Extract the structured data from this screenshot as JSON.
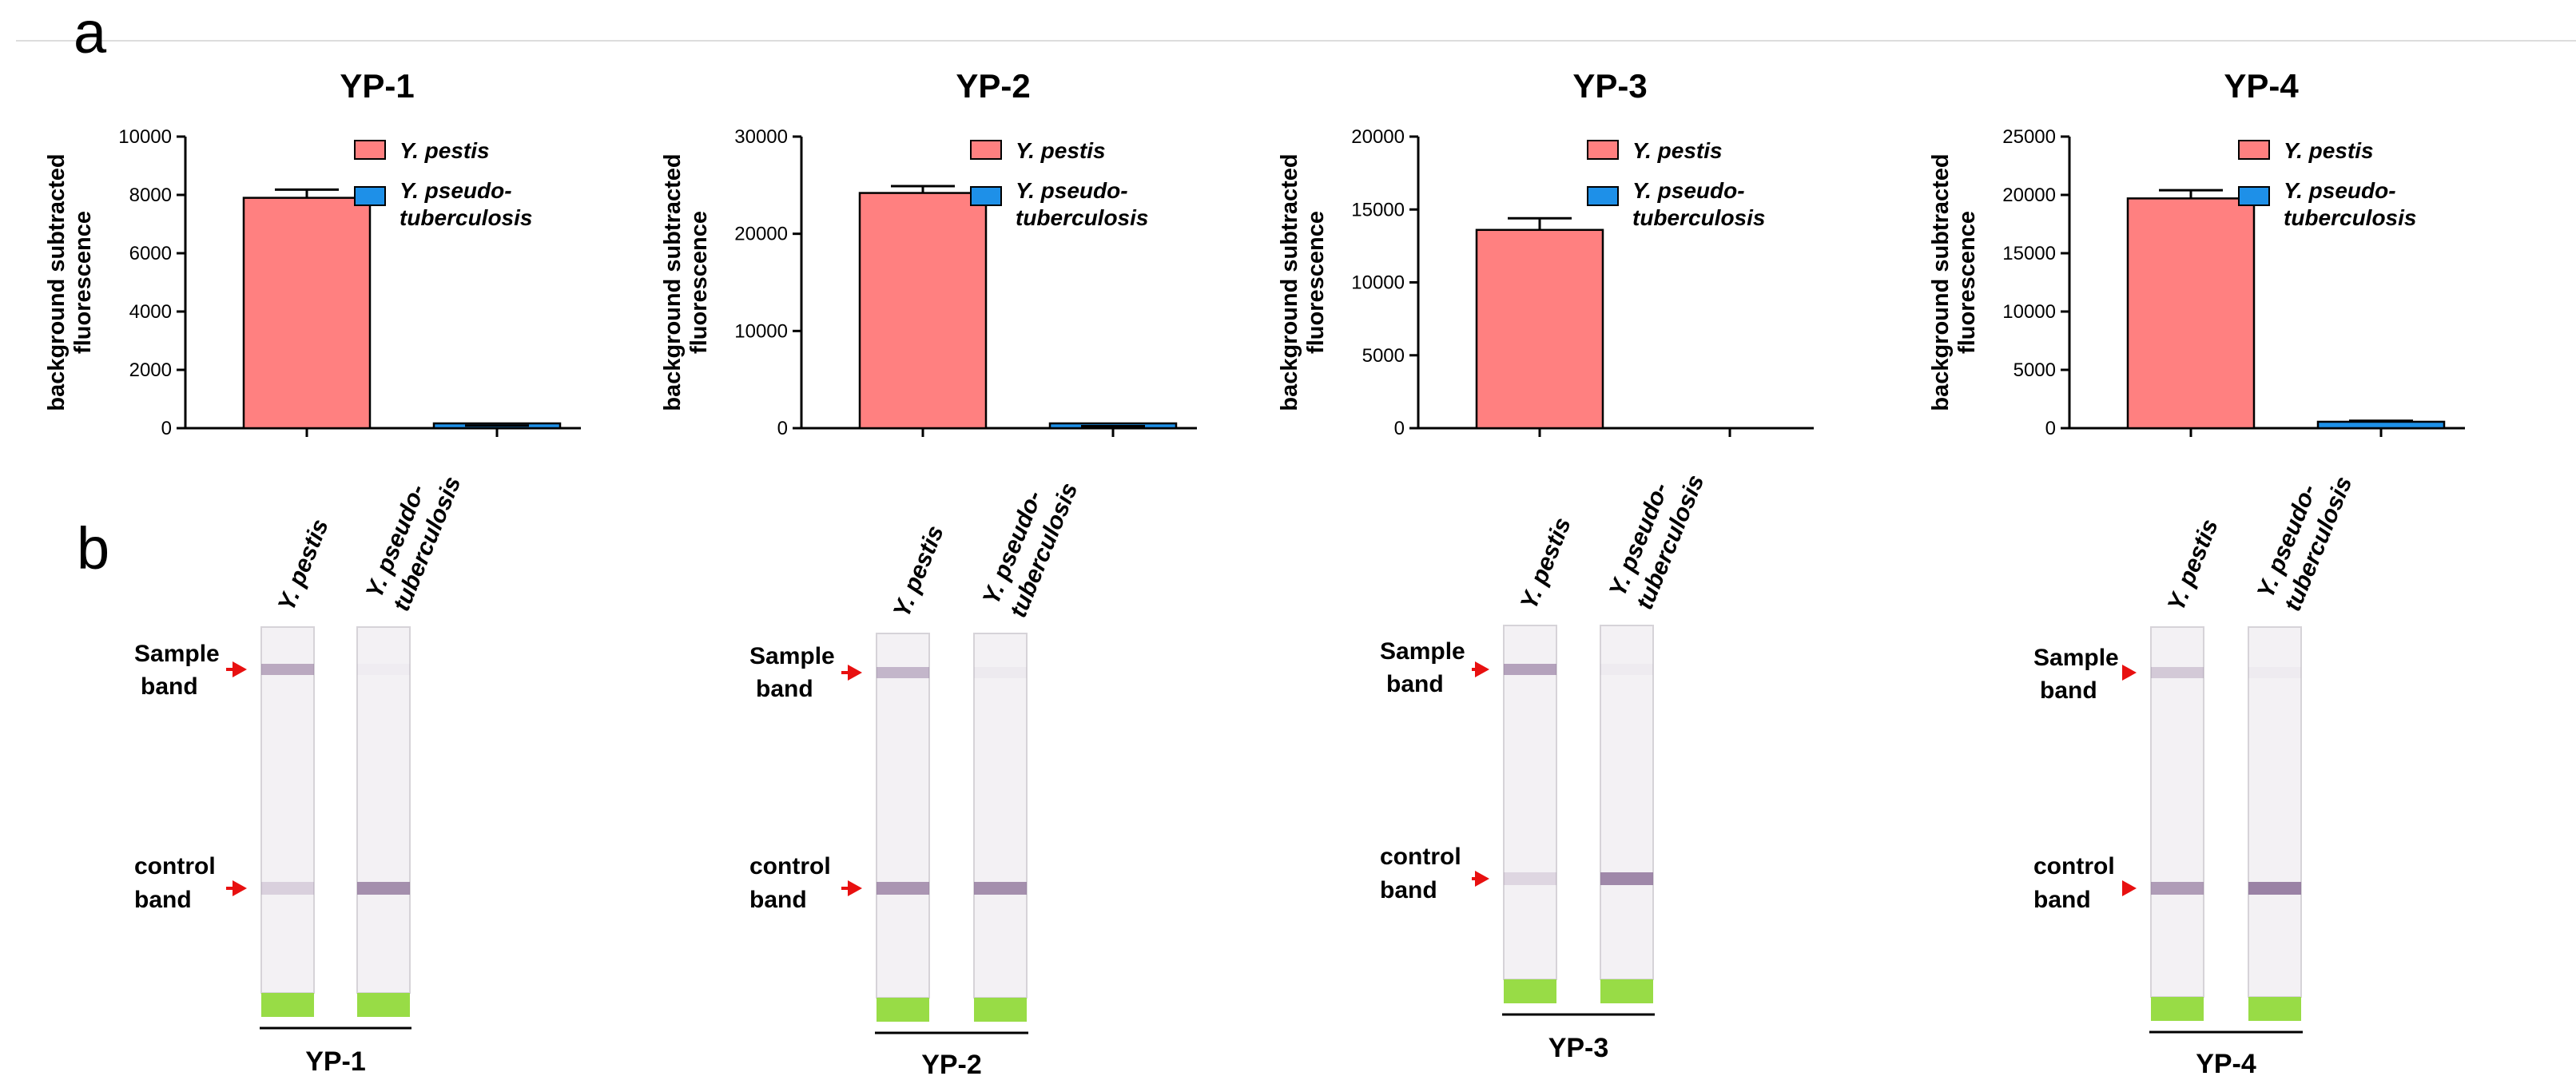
{
  "panels": {
    "a": "a",
    "b": "b"
  },
  "colors": {
    "y_pestis": "#FF8080",
    "y_pseudo": "#1E90E8",
    "axis": "#000000",
    "arrow": "#E81010",
    "band": "#8A6E96",
    "pad": "#98DC46",
    "strip": "#F3F1F4"
  },
  "chart_data": [
    {
      "type": "bar",
      "title": "YP-1",
      "ylabel_lines": [
        "background subtracted",
        "fluorescence"
      ],
      "categories": [
        "Y. pestis",
        "Y. pseudo-tuberculosis"
      ],
      "values": [
        7900,
        60
      ],
      "errors": [
        280,
        30
      ],
      "ylim": [
        0,
        10000
      ],
      "yticks": [
        0,
        2000,
        4000,
        6000,
        8000,
        10000
      ],
      "legend": [
        "Y. pestis",
        "Y. pseudo-",
        "tuberculosis"
      ]
    },
    {
      "type": "bar",
      "title": "YP-2",
      "ylabel_lines": [
        "background subtracted",
        "fluorescence"
      ],
      "categories": [
        "Y. pestis",
        "Y. pseudo-tuberculosis"
      ],
      "values": [
        24200,
        150
      ],
      "errors": [
        700,
        60
      ],
      "ylim": [
        0,
        30000
      ],
      "yticks": [
        0,
        10000,
        20000,
        30000
      ],
      "legend": [
        "Y. pestis",
        "Y. pseudo-",
        "tuberculosis"
      ]
    },
    {
      "type": "bar",
      "title": "YP-3",
      "ylabel_lines": [
        "background subtracted",
        "fluorescence"
      ],
      "categories": [
        "Y. pestis",
        "Y. pseudo-tuberculosis"
      ],
      "values": [
        13600,
        0
      ],
      "errors": [
        800,
        0
      ],
      "ylim": [
        0,
        20000
      ],
      "yticks": [
        0,
        5000,
        10000,
        15000,
        20000
      ],
      "legend": [
        "Y. pestis",
        "Y. pseudo-",
        "tuberculosis"
      ]
    },
    {
      "type": "bar",
      "title": "YP-4",
      "ylabel_lines": [
        "background subtracted",
        "fluorescence"
      ],
      "categories": [
        "Y. pestis",
        "Y. pseudo-tuberculosis"
      ],
      "values": [
        19700,
        550
      ],
      "errors": [
        700,
        80
      ],
      "ylim": [
        0,
        25000
      ],
      "yticks": [
        0,
        5000,
        10000,
        15000,
        20000,
        25000
      ],
      "legend": [
        "Y. pestis",
        "Y. pseudo-",
        "tuberculosis"
      ]
    }
  ],
  "strips": {
    "lane_labels": [
      "Y. pestis",
      "Y. pseudo-",
      "tuberculosis"
    ],
    "sample_label": [
      "Sample",
      "band"
    ],
    "control_label": [
      "control",
      "band"
    ],
    "groups": [
      {
        "name": "YP-1",
        "sample_band": [
          0.55,
          0.03
        ],
        "control_band": [
          0.25,
          0.75
        ]
      },
      {
        "name": "YP-2",
        "sample_band": [
          0.45,
          0.05
        ],
        "control_band": [
          0.7,
          0.75
        ]
      },
      {
        "name": "YP-3",
        "sample_band": [
          0.6,
          0.04
        ],
        "control_band": [
          0.2,
          0.8
        ]
      },
      {
        "name": "YP-4",
        "sample_band": [
          0.3,
          0.04
        ],
        "control_band": [
          0.65,
          0.85
        ]
      }
    ]
  }
}
